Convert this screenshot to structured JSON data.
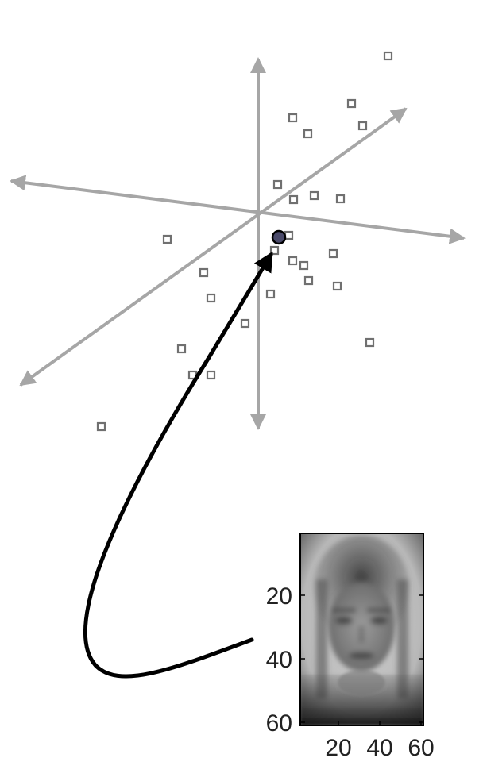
{
  "colors": {
    "background": "#ffffff",
    "axes": "#a6a6a6",
    "sample_markers": "#707070",
    "highlight_point_fill": "#4a4a6a",
    "highlight_point_stroke": "#000000",
    "mapping_arrow": "#000000",
    "image_frame": "#000000",
    "tick_labels": "#222222"
  },
  "scatter": {
    "description_type": "3d-projection",
    "marker": "hollow-square",
    "axis_count": 3,
    "sample_count": 26,
    "highlighted_sample_count": 1
  },
  "face_image": {
    "y_tick_labels": [
      "20",
      "40",
      "60"
    ],
    "x_tick_labels": [
      "20",
      "40",
      "60"
    ],
    "colormap": "gray"
  },
  "mapping_arrow": {
    "direction": "from-image-to-point"
  }
}
